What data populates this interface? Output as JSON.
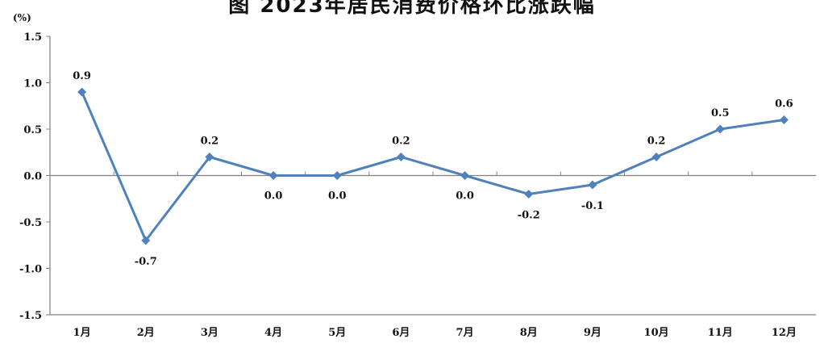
{
  "chart_data": {
    "type": "line",
    "title": "图 2023年居民消费价格环比涨跌幅",
    "ylabel": "(%)",
    "xlabel": "",
    "categories": [
      "1月",
      "2月",
      "3月",
      "4月",
      "5月",
      "6月",
      "7月",
      "8月",
      "9月",
      "10月",
      "11月",
      "12月"
    ],
    "series": [
      {
        "values": [
          0.9,
          -0.7,
          0.2,
          0.0,
          0.0,
          0.2,
          0.0,
          -0.2,
          -0.1,
          0.2,
          0.5,
          0.6
        ]
      }
    ],
    "data_labels": [
      "0.9",
      "-0.7",
      "0.2",
      "0.0",
      "0.0",
      "0.2",
      "0.0",
      "-0.2",
      "-0.1",
      "0.2",
      "0.5",
      "0.6"
    ],
    "ylim": [
      -1.5,
      1.5
    ],
    "yticks": [
      1.5,
      1.0,
      0.5,
      0.0,
      -0.5,
      -1.0,
      -1.5
    ],
    "ytick_labels": [
      "1.5",
      "1.0",
      "0.5",
      "0.0",
      "-0.5",
      "-1.0",
      "-1.5"
    ],
    "grid": false,
    "legend": "none",
    "colors": {
      "line": "#4F81BD",
      "axis": "#808080"
    }
  }
}
